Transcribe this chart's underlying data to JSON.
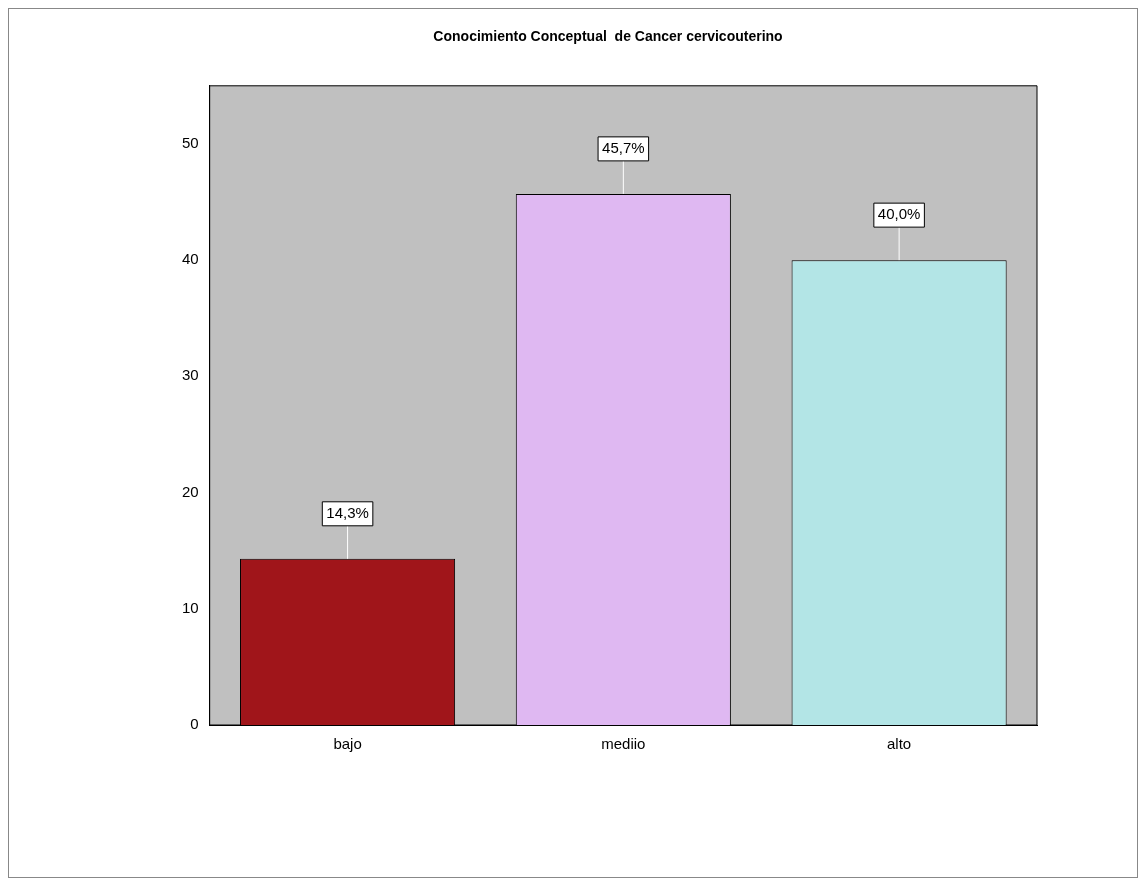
{
  "chart_data": {
    "type": "bar",
    "title": "Conocimiento Conceptual  de Cancer cervicouterino",
    "categories": [
      "bajo",
      "mediio",
      "alto"
    ],
    "values": [
      14.3,
      45.7,
      40.0
    ],
    "colors": [
      "#a0151a",
      "#dfb8f2",
      "#b3e5e6"
    ],
    "value_labels": [
      "14,3%",
      "45,7%",
      "40,0%"
    ],
    "ylim": [
      0,
      55
    ],
    "yticks": [
      0,
      10,
      20,
      30,
      40,
      50
    ],
    "grid": false,
    "legend": false
  }
}
